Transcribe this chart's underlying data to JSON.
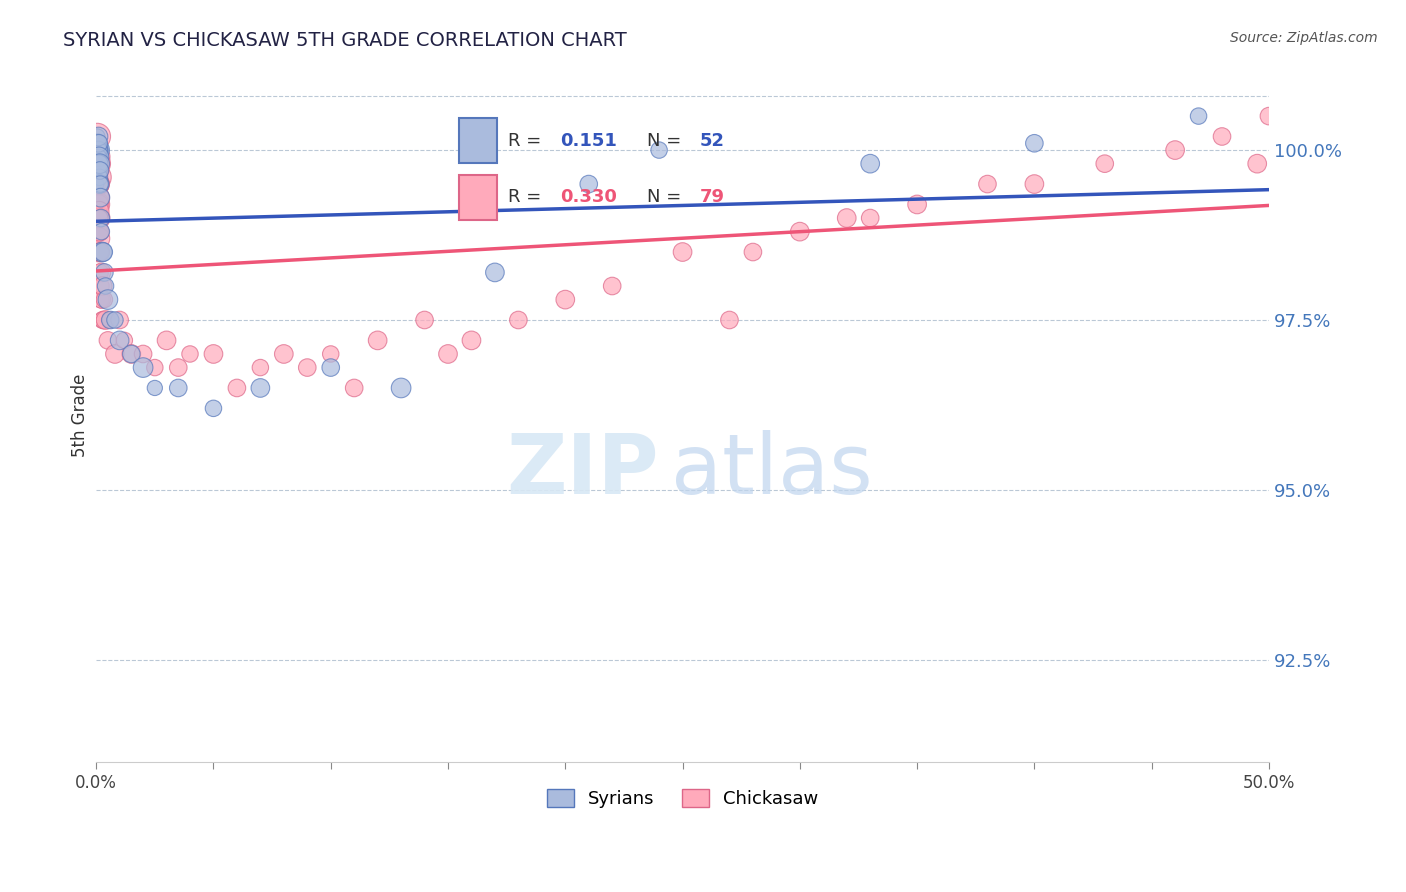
{
  "title": "SYRIAN VS CHICKASAW 5TH GRADE CORRELATION CHART",
  "source_text": "Source: ZipAtlas.com",
  "ylabel": "5th Grade",
  "xlim": [
    0.0,
    50.0
  ],
  "ylim": [
    91.0,
    101.2
  ],
  "yticks": [
    92.5,
    95.0,
    97.5,
    100.0
  ],
  "ytick_labels": [
    "92.5%",
    "95.0%",
    "97.5%",
    "100.0%"
  ],
  "xticks": [
    0.0,
    5.0,
    10.0,
    15.0,
    20.0,
    25.0,
    30.0,
    35.0,
    40.0,
    45.0,
    50.0
  ],
  "xtick_labels": [
    "0.0%",
    "",
    "",
    "",
    "",
    "",
    "",
    "",
    "",
    "",
    "50.0%"
  ],
  "blue_color": "#AABBDD",
  "pink_color": "#FFAABB",
  "blue_edge_color": "#5577BB",
  "pink_edge_color": "#DD6688",
  "blue_line_color": "#3355BB",
  "pink_line_color": "#EE5577",
  "background_color": "#FFFFFF",
  "syrians_x": [
    0.02,
    0.03,
    0.04,
    0.04,
    0.05,
    0.05,
    0.06,
    0.06,
    0.07,
    0.07,
    0.08,
    0.08,
    0.09,
    0.09,
    0.1,
    0.1,
    0.1,
    0.11,
    0.11,
    0.12,
    0.12,
    0.13,
    0.14,
    0.15,
    0.15,
    0.16,
    0.17,
    0.18,
    0.2,
    0.22,
    0.25,
    0.3,
    0.35,
    0.4,
    0.5,
    0.6,
    0.8,
    1.0,
    1.5,
    2.0,
    2.5,
    3.5,
    5.0,
    7.0,
    10.0,
    13.0,
    17.0,
    21.0,
    24.0,
    33.0,
    40.0,
    47.0
  ],
  "syrians_y": [
    99.8,
    99.5,
    100.0,
    99.7,
    100.2,
    99.9,
    100.0,
    100.1,
    99.8,
    100.0,
    100.0,
    99.9,
    100.1,
    100.0,
    100.0,
    99.8,
    100.2,
    99.9,
    100.1,
    99.7,
    99.9,
    99.8,
    99.6,
    99.5,
    99.8,
    99.7,
    99.5,
    99.3,
    99.0,
    98.8,
    98.5,
    98.5,
    98.2,
    98.0,
    97.8,
    97.5,
    97.5,
    97.2,
    97.0,
    96.8,
    96.5,
    96.5,
    96.2,
    96.5,
    96.8,
    96.5,
    98.2,
    99.5,
    100.0,
    99.8,
    100.1,
    100.5
  ],
  "syrians_size": [
    120,
    100,
    140,
    160,
    120,
    200,
    240,
    180,
    140,
    280,
    200,
    160,
    140,
    120,
    160,
    140,
    180,
    120,
    160,
    140,
    200,
    160,
    140,
    180,
    200,
    160,
    140,
    180,
    160,
    140,
    200,
    180,
    160,
    140,
    200,
    160,
    140,
    180,
    160,
    200,
    120,
    160,
    140,
    180,
    160,
    200,
    180,
    160,
    140,
    180,
    160,
    140
  ],
  "chickasaw_x": [
    0.02,
    0.03,
    0.04,
    0.04,
    0.05,
    0.05,
    0.05,
    0.06,
    0.06,
    0.07,
    0.07,
    0.08,
    0.08,
    0.08,
    0.09,
    0.09,
    0.1,
    0.1,
    0.1,
    0.11,
    0.11,
    0.12,
    0.12,
    0.13,
    0.13,
    0.14,
    0.15,
    0.15,
    0.16,
    0.17,
    0.18,
    0.18,
    0.2,
    0.22,
    0.24,
    0.26,
    0.28,
    0.3,
    0.35,
    0.4,
    0.5,
    0.6,
    0.8,
    1.0,
    1.2,
    1.5,
    2.0,
    2.5,
    3.0,
    3.5,
    4.0,
    5.0,
    6.0,
    7.0,
    8.0,
    9.0,
    10.0,
    12.0,
    14.0,
    16.0,
    18.0,
    20.0,
    22.0,
    25.0,
    28.0,
    30.0,
    33.0,
    35.0,
    38.0,
    40.0,
    43.0,
    46.0,
    48.0,
    49.5,
    50.0,
    32.0,
    27.0,
    15.0,
    11.0
  ],
  "chickasaw_y": [
    99.5,
    99.8,
    100.0,
    99.3,
    99.8,
    100.2,
    99.6,
    99.5,
    99.9,
    99.7,
    98.8,
    99.2,
    99.8,
    99.5,
    98.5,
    99.0,
    99.5,
    99.2,
    99.8,
    98.8,
    99.3,
    99.0,
    98.7,
    98.5,
    99.1,
    98.5,
    99.0,
    98.8,
    98.5,
    98.2,
    98.5,
    98.0,
    97.8,
    98.2,
    97.8,
    97.5,
    98.0,
    97.5,
    97.8,
    97.5,
    97.2,
    97.5,
    97.0,
    97.5,
    97.2,
    97.0,
    97.0,
    96.8,
    97.2,
    96.8,
    97.0,
    97.0,
    96.5,
    96.8,
    97.0,
    96.8,
    97.0,
    97.2,
    97.5,
    97.2,
    97.5,
    97.8,
    98.0,
    98.5,
    98.5,
    98.8,
    99.0,
    99.2,
    99.5,
    99.5,
    99.8,
    100.0,
    100.2,
    99.8,
    100.5,
    99.0,
    97.5,
    97.0,
    96.5
  ],
  "chickasaw_size": [
    160,
    200,
    240,
    280,
    320,
    360,
    400,
    280,
    320,
    240,
    200,
    280,
    320,
    240,
    200,
    280,
    240,
    200,
    160,
    200,
    240,
    200,
    240,
    160,
    200,
    160,
    140,
    180,
    160,
    140,
    180,
    160,
    140,
    180,
    160,
    140,
    180,
    160,
    140,
    180,
    160,
    140,
    180,
    160,
    140,
    180,
    160,
    140,
    180,
    160,
    140,
    180,
    160,
    140,
    180,
    160,
    140,
    180,
    160,
    180,
    160,
    180,
    160,
    180,
    160,
    180,
    160,
    180,
    160,
    180,
    160,
    180,
    160,
    180,
    160,
    180,
    160,
    180,
    160
  ]
}
